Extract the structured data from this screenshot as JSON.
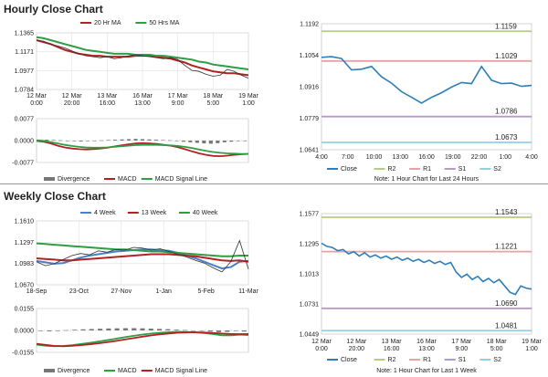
{
  "sections": {
    "hourly_title": "Hourly Close Chart",
    "weekly_title": "Weekly Close Chart"
  },
  "chart_data": [
    {
      "id": "hourly-price",
      "type": "line",
      "x_labels": [
        "12 Mar\n0:00",
        "12 Mar\n20:00",
        "13 Mar\n16:00",
        "16 Mar\n13:00",
        "17 Mar\n9:00",
        "18 Mar\n5:00",
        "19 Mar\n1:00"
      ],
      "y_ticks": [
        1.1365,
        1.1171,
        1.0977,
        1.0784
      ],
      "ylim": [
        1.0784,
        1.1365
      ],
      "legend": [
        "20 Hr MA",
        "50 Hrs MA"
      ],
      "series": [
        {
          "name": "Close",
          "color": "#333333",
          "values": [
            1.129,
            1.128,
            1.125,
            1.123,
            1.121,
            1.118,
            1.115,
            1.113,
            1.112,
            1.111,
            1.112,
            1.11,
            1.111,
            1.113,
            1.114,
            1.113,
            1.112,
            1.111,
            1.11,
            1.111,
            1.109,
            1.103,
            1.098,
            1.097,
            1.094,
            1.092,
            1.093,
            1.099,
            1.097,
            1.093,
            1.09
          ]
        },
        {
          "name": "20 Hr MA",
          "color": "#b22222",
          "values": [
            1.129,
            1.127,
            1.125,
            1.122,
            1.119,
            1.117,
            1.115,
            1.114,
            1.113,
            1.113,
            1.112,
            1.112,
            1.112,
            1.112,
            1.113,
            1.113,
            1.113,
            1.112,
            1.111,
            1.11,
            1.108,
            1.106,
            1.103,
            1.101,
            1.099,
            1.097,
            1.096,
            1.095,
            1.095,
            1.094,
            1.093
          ]
        },
        {
          "name": "50 Hrs MA",
          "color": "#2e9e44",
          "values": [
            1.132,
            1.131,
            1.129,
            1.127,
            1.125,
            1.123,
            1.121,
            1.119,
            1.118,
            1.117,
            1.116,
            1.115,
            1.115,
            1.115,
            1.114,
            1.114,
            1.114,
            1.113,
            1.113,
            1.112,
            1.111,
            1.11,
            1.109,
            1.107,
            1.106,
            1.104,
            1.103,
            1.102,
            1.101,
            1.1,
            1.099
          ]
        }
      ]
    },
    {
      "id": "hourly-macd",
      "type": "bar",
      "y_ticks": [
        0.0077,
        0.0,
        -0.0077
      ],
      "ylim": [
        -0.0077,
        0.0077
      ],
      "legend": [
        "Divergence",
        "MACD",
        "MACD Signal Line"
      ],
      "series": [
        {
          "name": "Divergence",
          "color": "#777777",
          "values": [
            0.0002,
            0.0003,
            0.0002,
            0.0001,
            -0.0001,
            -0.0002,
            -0.0003,
            -0.0002,
            -0.0001,
            0.0001,
            0.0002,
            0.0003,
            0.0004,
            0.0005,
            0.0006,
            0.0005,
            0.0004,
            0.0003,
            0.0002,
            0.0001,
            -0.0002,
            -0.0004,
            -0.0006,
            -0.0008,
            -0.001,
            -0.0011,
            -0.0009,
            -0.0006,
            -0.0004,
            -0.0002,
            -0.0001
          ]
        },
        {
          "name": "MACD",
          "color": "#b22222",
          "values": [
            -0.0001,
            -0.0004,
            -0.001,
            -0.0018,
            -0.0024,
            -0.0028,
            -0.003,
            -0.0031,
            -0.003,
            -0.0028,
            -0.0025,
            -0.0021,
            -0.0017,
            -0.0013,
            -0.001,
            -0.0009,
            -0.001,
            -0.0012,
            -0.0015,
            -0.0018,
            -0.0023,
            -0.003,
            -0.0038,
            -0.0045,
            -0.005,
            -0.0054,
            -0.0055,
            -0.0053,
            -0.005,
            -0.0048,
            -0.0047
          ]
        },
        {
          "name": "MACD Signal Line",
          "color": "#2e9e44",
          "values": [
            0.0001,
            -0.0001,
            -0.0005,
            -0.001,
            -0.0015,
            -0.0019,
            -0.0022,
            -0.0024,
            -0.0025,
            -0.0025,
            -0.0024,
            -0.0022,
            -0.002,
            -0.0018,
            -0.0016,
            -0.0015,
            -0.0015,
            -0.0015,
            -0.0016,
            -0.0017,
            -0.0019,
            -0.0022,
            -0.0026,
            -0.0031,
            -0.0036,
            -0.004,
            -0.0043,
            -0.0045,
            -0.0046,
            -0.0047,
            -0.0047
          ]
        }
      ]
    },
    {
      "id": "hourly-pivot",
      "type": "line",
      "x_labels": [
        "4:00",
        "7:00",
        "10:00",
        "13:00",
        "16:00",
        "19:00",
        "22:00",
        "1:00",
        "4:00"
      ],
      "y_ticks": [
        1.1192,
        1.1054,
        1.0916,
        1.0779,
        1.0641
      ],
      "ylim": [
        1.0641,
        1.1192
      ],
      "levels": [
        {
          "name": "R2",
          "value": 1.1159,
          "label": "1.1159",
          "color": "#b5cc87"
        },
        {
          "name": "R1",
          "value": 1.1029,
          "label": "1.1029",
          "color": "#e3a3a3"
        },
        {
          "name": "S1",
          "value": 1.0786,
          "label": "1.0786",
          "color": "#b49ac8"
        },
        {
          "name": "S2",
          "value": 1.0673,
          "label": "1.0673",
          "color": "#8fd0e3"
        }
      ],
      "series": [
        {
          "name": "Close",
          "color": "#2e7fb8",
          "values": [
            1.1045,
            1.1048,
            1.104,
            1.099,
            1.0993,
            1.1005,
            1.096,
            1.0932,
            1.0895,
            1.087,
            1.0845,
            1.087,
            1.089,
            1.0915,
            1.0935,
            1.093,
            1.1005,
            1.0945,
            1.093,
            1.0932,
            1.0918,
            1.0922
          ]
        }
      ],
      "legend": [
        "Close",
        "R2",
        "R1",
        "S1",
        "S2"
      ],
      "note": "Note: 1 Hour Chart for Last 24 Hours"
    },
    {
      "id": "weekly-price",
      "type": "line",
      "x_labels": [
        "18-Sep",
        "23-Oct",
        "27-Nov",
        "1-Jan",
        "5-Feb",
        "11-Mar"
      ],
      "y_ticks": [
        1.161,
        1.1297,
        1.0983,
        1.067
      ],
      "ylim": [
        1.067,
        1.161
      ],
      "legend": [
        "4 Week",
        "13 Week",
        "40 Week"
      ],
      "series": [
        {
          "name": "Close",
          "color": "#333333",
          "values": [
            1.101,
            1.095,
            1.098,
            1.104,
            1.11,
            1.113,
            1.111,
            1.117,
            1.115,
            1.119,
            1.118,
            1.122,
            1.121,
            1.118,
            1.12,
            1.116,
            1.112,
            1.108,
            1.103,
            1.099,
            1.092,
            1.086,
            1.101,
            1.132,
            1.09
          ]
        },
        {
          "name": "4 Week",
          "color": "#4a7fc9",
          "values": [
            1.102,
            1.1,
            1.098,
            1.099,
            1.103,
            1.107,
            1.11,
            1.112,
            1.114,
            1.116,
            1.117,
            1.118,
            1.119,
            1.119,
            1.118,
            1.117,
            1.114,
            1.11,
            1.106,
            1.101,
            1.096,
            1.091,
            1.093,
            1.101,
            1.102
          ]
        },
        {
          "name": "13 Week",
          "color": "#b22222",
          "values": [
            1.106,
            1.105,
            1.104,
            1.103,
            1.103,
            1.104,
            1.105,
            1.106,
            1.107,
            1.108,
            1.109,
            1.11,
            1.111,
            1.112,
            1.112,
            1.112,
            1.111,
            1.11,
            1.109,
            1.107,
            1.105,
            1.103,
            1.102,
            1.103,
            1.101
          ]
        },
        {
          "name": "40 Week",
          "color": "#2e9e44",
          "values": [
            1.128,
            1.127,
            1.126,
            1.125,
            1.124,
            1.123,
            1.122,
            1.121,
            1.12,
            1.119,
            1.119,
            1.118,
            1.117,
            1.116,
            1.116,
            1.115,
            1.114,
            1.113,
            1.112,
            1.111,
            1.11,
            1.109,
            1.109,
            1.11,
            1.11
          ]
        }
      ]
    },
    {
      "id": "weekly-macd",
      "type": "bar",
      "y_ticks": [
        0.0155,
        0.0,
        -0.0155
      ],
      "ylim": [
        -0.0155,
        0.0155
      ],
      "legend": [
        "Divergence",
        "MACD",
        "MACD Signal Line"
      ],
      "series": [
        {
          "name": "Divergence",
          "color": "#777777",
          "values": [
            -0.0004,
            -0.0006,
            -0.0003,
            0.0002,
            0.0005,
            0.0008,
            0.001,
            0.0012,
            0.0014,
            0.0015,
            0.0016,
            0.0016,
            0.0015,
            0.0013,
            0.0011,
            0.0009,
            0.0006,
            0.0003,
            -0.0001,
            -0.0004,
            -0.0008,
            -0.0012,
            -0.001,
            -0.0004,
            -0.0008
          ]
        },
        {
          "name": "MACD",
          "color": "#2e9e44",
          "values": [
            -0.01,
            -0.0108,
            -0.0112,
            -0.011,
            -0.0104,
            -0.0096,
            -0.0088,
            -0.0079,
            -0.0069,
            -0.0059,
            -0.0048,
            -0.0038,
            -0.0029,
            -0.0022,
            -0.0016,
            -0.0012,
            -0.001,
            -0.0011,
            -0.0014,
            -0.0019,
            -0.0026,
            -0.0034,
            -0.0035,
            -0.003,
            -0.0033
          ]
        },
        {
          "name": "MACD Signal Line",
          "color": "#b22222",
          "values": [
            -0.0095,
            -0.0102,
            -0.0109,
            -0.0112,
            -0.0109,
            -0.0104,
            -0.0098,
            -0.0091,
            -0.0083,
            -0.0074,
            -0.0064,
            -0.0054,
            -0.0044,
            -0.0035,
            -0.0027,
            -0.0021,
            -0.0016,
            -0.0014,
            -0.0013,
            -0.0015,
            -0.0018,
            -0.0022,
            -0.0025,
            -0.0026,
            -0.0025
          ]
        }
      ]
    },
    {
      "id": "weekly-pivot",
      "type": "line",
      "x_labels": [
        "12 Mar\n0:00",
        "12 Mar\n20:00",
        "13 Mar\n16:00",
        "16 Mar\n13:00",
        "17 Mar\n9:00",
        "18 Mar\n5:00",
        "19 Mar\n1:00"
      ],
      "y_ticks": [
        1.1577,
        1.1295,
        1.1013,
        1.0731,
        1.0449
      ],
      "ylim": [
        1.0449,
        1.1577
      ],
      "levels": [
        {
          "name": "R2",
          "value": 1.1543,
          "label": "1.1543",
          "color": "#b5cc87"
        },
        {
          "name": "R1",
          "value": 1.1221,
          "label": "1.1221",
          "color": "#e3a3a3"
        },
        {
          "name": "S1",
          "value": 1.069,
          "label": "1.0690",
          "color": "#b49ac8"
        },
        {
          "name": "S2",
          "value": 1.0481,
          "label": "1.0481",
          "color": "#8fd0e3"
        }
      ],
      "series": [
        {
          "name": "Close",
          "color": "#2e7fb8",
          "values": [
            1.13,
            1.127,
            1.126,
            1.123,
            1.124,
            1.12,
            1.122,
            1.118,
            1.121,
            1.117,
            1.119,
            1.116,
            1.118,
            1.115,
            1.117,
            1.114,
            1.116,
            1.113,
            1.115,
            1.112,
            1.114,
            1.111,
            1.113,
            1.11,
            1.112,
            1.103,
            1.098,
            1.101,
            1.096,
            1.099,
            1.094,
            1.097,
            1.093,
            1.096,
            1.09,
            1.084,
            1.082,
            1.09,
            1.088,
            1.087
          ]
        }
      ],
      "legend": [
        "Close",
        "R2",
        "R1",
        "S1",
        "S2"
      ],
      "note": "Note: 1 Hour Chart for Last 1 Week"
    }
  ]
}
